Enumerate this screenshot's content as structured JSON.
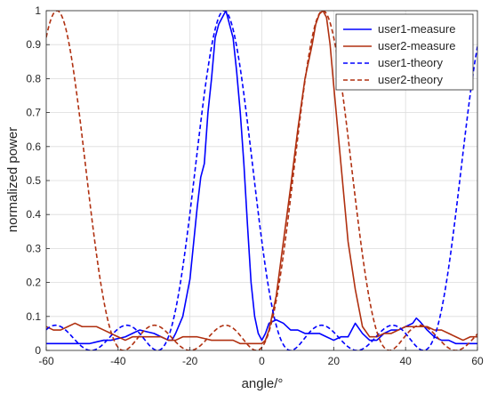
{
  "chart_data": {
    "type": "line",
    "xlabel": "angle/°",
    "ylabel": "normalized power",
    "xlim": [
      -60,
      60
    ],
    "ylim": [
      0,
      1
    ],
    "xticks": [
      "-60",
      "-40",
      "-20",
      "0",
      "20",
      "40",
      "60"
    ],
    "yticks": [
      "0",
      "0.1",
      "0.2",
      "0.3",
      "0.4",
      "0.5",
      "0.6",
      "0.7",
      "0.8",
      "0.9",
      "1"
    ],
    "grid": true,
    "legend_position": "top-right",
    "series": [
      {
        "name": "user1-measure",
        "color": "#0000ff",
        "style": "solid",
        "x": [
          -60,
          -58,
          -56,
          -54,
          -52,
          -50,
          -48,
          -46,
          -44,
          -42,
          -40,
          -38,
          -36,
          -34,
          -32,
          -30,
          -28,
          -26,
          -25,
          -24,
          -22,
          -20,
          -18,
          -17,
          -16,
          -15,
          -14,
          -13,
          -12,
          -11,
          -10,
          -9,
          -8,
          -7,
          -6,
          -5,
          -4,
          -3,
          -2,
          -1,
          0,
          1,
          2,
          4,
          6,
          8,
          10,
          12,
          14,
          16,
          18,
          20,
          22,
          24,
          26,
          28,
          30,
          32,
          34,
          36,
          38,
          40,
          42,
          43,
          44,
          46,
          48,
          50,
          52,
          54,
          56,
          58,
          60
        ],
        "y": [
          0.02,
          0.02,
          0.02,
          0.02,
          0.02,
          0.02,
          0.02,
          0.025,
          0.03,
          0.03,
          0.035,
          0.04,
          0.05,
          0.06,
          0.055,
          0.05,
          0.04,
          0.03,
          0.03,
          0.05,
          0.1,
          0.21,
          0.42,
          0.51,
          0.55,
          0.7,
          0.8,
          0.92,
          0.96,
          0.98,
          1.0,
          0.96,
          0.92,
          0.82,
          0.7,
          0.55,
          0.37,
          0.2,
          0.1,
          0.05,
          0.03,
          0.05,
          0.08,
          0.09,
          0.08,
          0.06,
          0.06,
          0.05,
          0.05,
          0.05,
          0.04,
          0.03,
          0.04,
          0.04,
          0.08,
          0.05,
          0.03,
          0.03,
          0.05,
          0.06,
          0.06,
          0.07,
          0.08,
          0.095,
          0.085,
          0.06,
          0.04,
          0.03,
          0.03,
          0.02,
          0.02,
          0.02,
          0.02
        ]
      },
      {
        "name": "user2-measure",
        "color": "#b03010",
        "style": "solid",
        "x": [
          -60,
          -58,
          -56,
          -54,
          -52,
          -50,
          -48,
          -46,
          -44,
          -42,
          -40,
          -38,
          -36,
          -34,
          -32,
          -30,
          -28,
          -26,
          -24,
          -22,
          -20,
          -18,
          -16,
          -14,
          -12,
          -10,
          -8,
          -6,
          -4,
          -2,
          0,
          1,
          2,
          4,
          6,
          8,
          10,
          12,
          14,
          15,
          16,
          17,
          18,
          19,
          20,
          22,
          24,
          26,
          28,
          30,
          32,
          34,
          36,
          38,
          40,
          42,
          44,
          46,
          48,
          50,
          52,
          54,
          56,
          58,
          60
        ],
        "y": [
          0.07,
          0.06,
          0.06,
          0.07,
          0.08,
          0.07,
          0.07,
          0.07,
          0.06,
          0.05,
          0.04,
          0.03,
          0.04,
          0.04,
          0.04,
          0.04,
          0.04,
          0.03,
          0.03,
          0.04,
          0.04,
          0.04,
          0.035,
          0.03,
          0.03,
          0.03,
          0.03,
          0.02,
          0.02,
          0.02,
          0.02,
          0.03,
          0.06,
          0.16,
          0.32,
          0.48,
          0.65,
          0.8,
          0.9,
          0.96,
          0.99,
          1.0,
          0.98,
          0.9,
          0.78,
          0.55,
          0.32,
          0.18,
          0.07,
          0.04,
          0.04,
          0.05,
          0.05,
          0.06,
          0.07,
          0.07,
          0.07,
          0.07,
          0.06,
          0.06,
          0.05,
          0.04,
          0.03,
          0.04,
          0.04
        ]
      },
      {
        "name": "user1-theory",
        "color": "#0000ff",
        "style": "dashed",
        "formula": {
          "center": -10.5,
          "width": 18.5
        }
      },
      {
        "name": "user2-theory",
        "color": "#b03010",
        "style": "dashed",
        "formula": {
          "center": 17,
          "width": 18.5
        }
      }
    ]
  }
}
